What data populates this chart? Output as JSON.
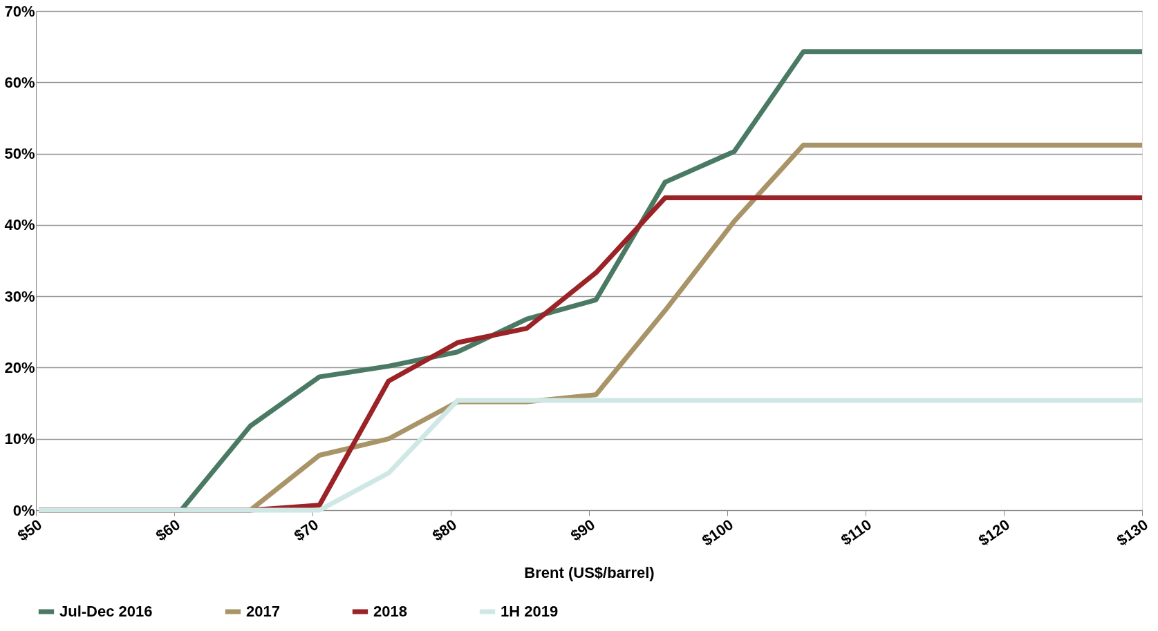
{
  "chart_data": {
    "type": "line",
    "xlabel": "Brent  (US$/barrel)",
    "xlim": [
      50,
      130
    ],
    "ylim": [
      0,
      70
    ],
    "xticks": [
      {
        "value": 50,
        "label": "$50"
      },
      {
        "value": 60,
        "label": "$60"
      },
      {
        "value": 70,
        "label": "$70"
      },
      {
        "value": 80,
        "label": "$80"
      },
      {
        "value": 90,
        "label": "$90"
      },
      {
        "value": 100,
        "label": "$100"
      },
      {
        "value": 110,
        "label": "$110"
      },
      {
        "value": 120,
        "label": "$120"
      },
      {
        "value": 130,
        "label": "$130"
      }
    ],
    "yticks": [
      {
        "value": 0,
        "label": "0%"
      },
      {
        "value": 10,
        "label": "10%"
      },
      {
        "value": 20,
        "label": "20%"
      },
      {
        "value": 30,
        "label": "30%"
      },
      {
        "value": 40,
        "label": "40%"
      },
      {
        "value": 50,
        "label": "50%"
      },
      {
        "value": 60,
        "label": "60%"
      },
      {
        "value": 70,
        "label": "70%"
      }
    ],
    "grid": "y",
    "legend": "bottom",
    "marker": "none",
    "line_style": "solid",
    "series": [
      {
        "name": "Jul-Dec 2016",
        "color": "#4a7a63",
        "x": [
          50.2,
          60.5,
          65.5,
          70.5,
          75.5,
          80.5,
          85.5,
          90.5,
          95.5,
          100.5,
          105.5,
          130
        ],
        "values": [
          0,
          0,
          11.8,
          18.7,
          20.2,
          22.2,
          26.8,
          29.5,
          46,
          50.3,
          64.3,
          64.3
        ]
      },
      {
        "name": "2017",
        "color": "#a89467",
        "x": [
          50.2,
          60.5,
          65.5,
          70.5,
          75.5,
          80.5,
          85.5,
          90.5,
          95.5,
          100.5,
          105.5,
          130
        ],
        "values": [
          0,
          0,
          0,
          7.7,
          10,
          15.2,
          15.2,
          16.2,
          28,
          40.5,
          51.2,
          51.2
        ]
      },
      {
        "name": "2018",
        "color": "#9b2226",
        "x": [
          50.2,
          60.5,
          65.5,
          70.5,
          75.5,
          80.5,
          85.5,
          90.5,
          95.5,
          100.5,
          105.5,
          130
        ],
        "values": [
          0,
          0,
          0,
          0.7,
          18.1,
          23.5,
          25.5,
          33.3,
          43.8,
          43.8,
          43.8,
          43.8
        ]
      },
      {
        "name": "1H 2019",
        "color": "#cfe8e6",
        "x": [
          50.2,
          60.5,
          65.5,
          70.5,
          75.5,
          80.5,
          85.5,
          90.5,
          95.5,
          100.5,
          105.5,
          130
        ],
        "values": [
          0,
          0,
          0,
          0,
          5.2,
          15.4,
          15.4,
          15.4,
          15.4,
          15.4,
          15.4,
          15.4
        ]
      }
    ]
  }
}
